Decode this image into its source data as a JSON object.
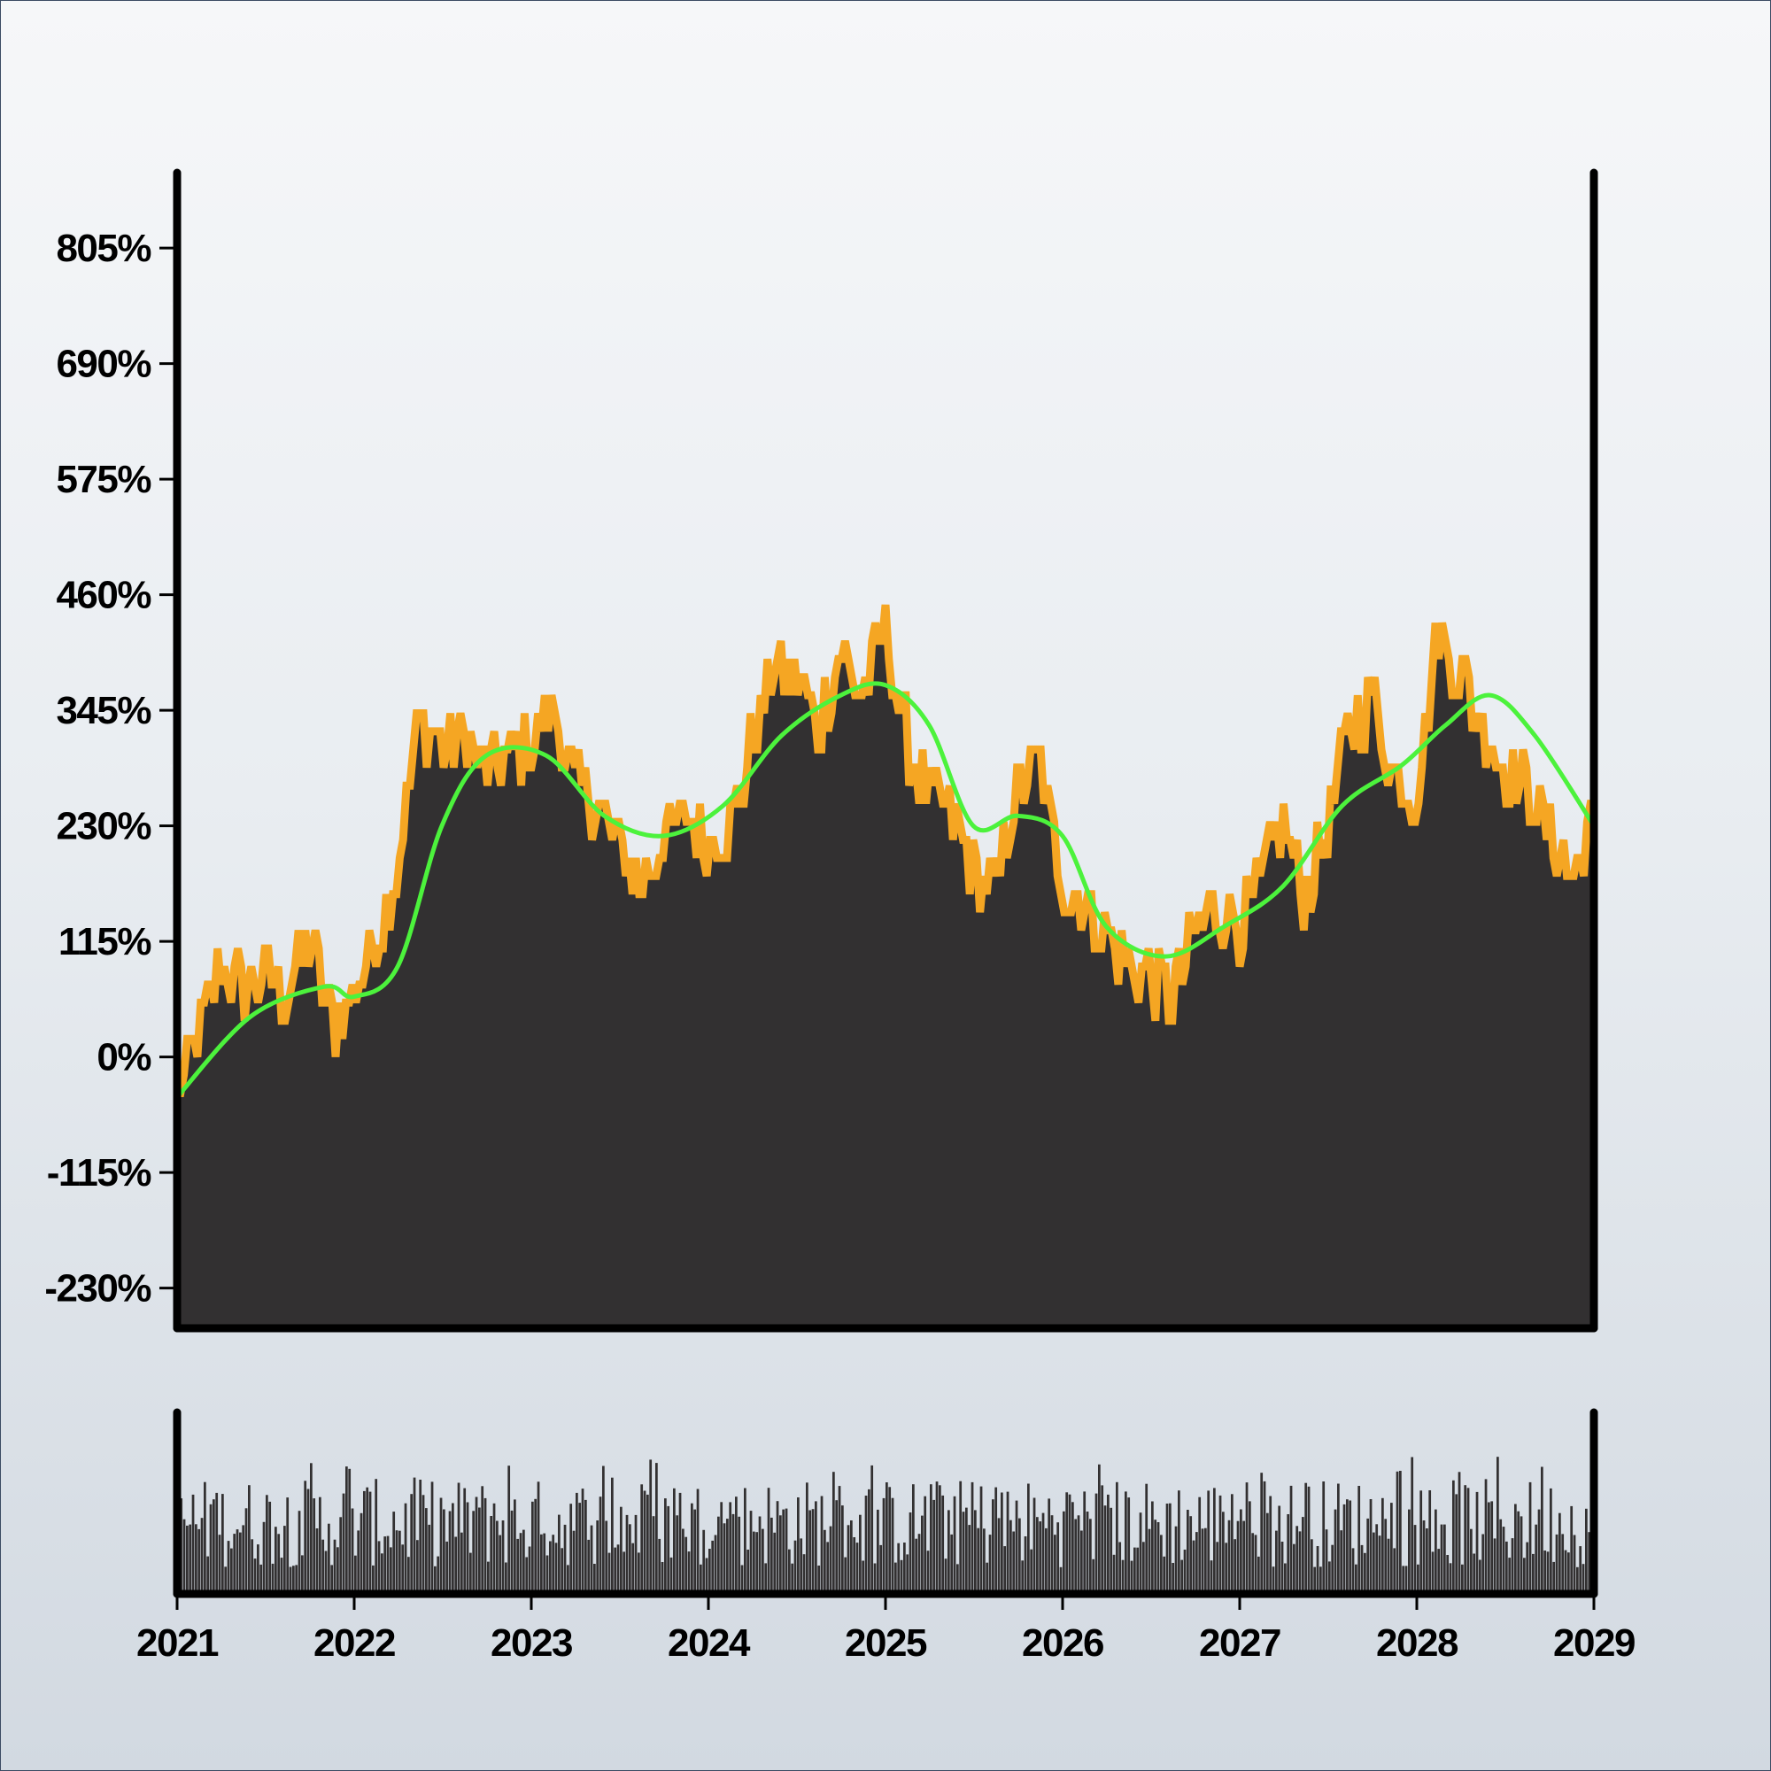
{
  "chart_data": [
    {
      "type": "area",
      "x_start": "2021-01-01",
      "x_end": "2029-01-01",
      "ylim": [
        -270,
        880
      ],
      "yticks": [
        805,
        690,
        575,
        460,
        345,
        230,
        115,
        0,
        -115,
        -230
      ],
      "ytick_labels": [
        "805%",
        "690%",
        "575%",
        "460%",
        "345%",
        "230%",
        "115%",
        "0%",
        "-115%",
        "-230%"
      ],
      "grid": false,
      "legend": "none",
      "colors": {
        "area_fill": "#323031",
        "area_edge": "#f5a623",
        "moving_average": "#4cf23c"
      },
      "series": [
        {
          "role": "value",
          "x": [
            "2021-01-01",
            "2021-02-15",
            "2021-04-01",
            "2021-05-15",
            "2021-07-01",
            "2021-08-15",
            "2021-10-01",
            "2021-11-15",
            "2022-01-01",
            "2022-02-15",
            "2022-04-01",
            "2022-05-15",
            "2022-07-01",
            "2022-08-15",
            "2022-10-01",
            "2022-11-15",
            "2023-01-01",
            "2023-02-15",
            "2023-04-01",
            "2023-05-15",
            "2023-07-01",
            "2023-08-15",
            "2023-10-01",
            "2023-11-15",
            "2024-01-01",
            "2024-02-15",
            "2024-04-01",
            "2024-05-15",
            "2024-07-01",
            "2024-08-15",
            "2024-10-01",
            "2024-11-15",
            "2025-01-01",
            "2025-02-15",
            "2025-04-01",
            "2025-05-15",
            "2025-07-01",
            "2025-08-15",
            "2025-10-01",
            "2025-11-15",
            "2026-01-01",
            "2026-02-15",
            "2026-04-01",
            "2026-05-15",
            "2026-07-01",
            "2026-08-15",
            "2026-10-01",
            "2026-11-15",
            "2027-01-01",
            "2027-02-15",
            "2027-04-01",
            "2027-05-15",
            "2027-07-01",
            "2027-08-15",
            "2027-10-01",
            "2027-11-15",
            "2028-01-01",
            "2028-02-15",
            "2028-04-01",
            "2028-05-15",
            "2028-07-01",
            "2028-08-15",
            "2028-10-01",
            "2028-11-15",
            "2029-01-01"
          ],
          "y": [
            -40,
            20,
            90,
            70,
            80,
            60,
            120,
            30,
            60,
            120,
            190,
            340,
            310,
            320,
            280,
            300,
            310,
            350,
            270,
            250,
            210,
            170,
            220,
            240,
            210,
            230,
            310,
            390,
            380,
            330,
            400,
            360,
            430,
            310,
            260,
            240,
            190,
            160,
            270,
            290,
            170,
            150,
            120,
            90,
            80,
            60,
            120,
            150,
            130,
            170,
            240,
            150,
            230,
            320,
            360,
            280,
            260,
            420,
            380,
            330,
            290,
            270,
            230,
            180,
            240
          ]
        },
        {
          "role": "moving_average",
          "x": [
            "2021-01-01",
            "2021-06-01",
            "2021-11-01",
            "2022-01-01",
            "2022-04-01",
            "2022-07-01",
            "2022-10-01",
            "2023-02-01",
            "2023-06-01",
            "2023-10-01",
            "2024-02-01",
            "2024-06-01",
            "2024-10-01",
            "2025-01-01",
            "2025-04-01",
            "2025-07-01",
            "2025-10-01",
            "2026-01-01",
            "2026-04-01",
            "2026-08-01",
            "2026-12-01",
            "2027-04-01",
            "2027-08-01",
            "2027-12-01",
            "2028-03-01",
            "2028-06-01",
            "2028-09-01",
            "2029-01-01"
          ],
          "y": [
            -40,
            40,
            70,
            60,
            90,
            230,
            300,
            300,
            240,
            220,
            250,
            320,
            360,
            370,
            330,
            230,
            240,
            220,
            130,
            100,
            130,
            170,
            250,
            290,
            330,
            360,
            320,
            230
          ]
        }
      ]
    },
    {
      "type": "bar",
      "role": "volume",
      "x_start": "2021-01-01",
      "x_end": "2029-01-01",
      "bar_count": 480,
      "color": "#323031"
    }
  ],
  "xtick_labels": [
    "2021",
    "2022",
    "2023",
    "2024",
    "2025",
    "2026",
    "2027",
    "2028",
    "2029"
  ]
}
